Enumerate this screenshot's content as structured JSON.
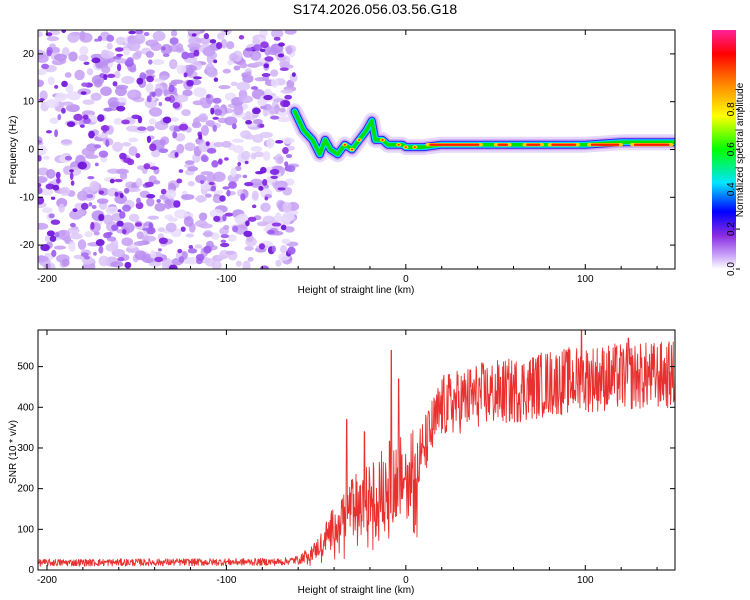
{
  "page": {
    "title": "S174.2026.056.03.56.G18"
  },
  "chart_data": [
    {
      "type": "heatmap",
      "name": "spectrogram",
      "xlabel": "Height of straight line (km)",
      "ylabel": "Frequency (Hz)",
      "xlim": [
        -205,
        150
      ],
      "ylim": [
        -25,
        25
      ],
      "xticks": [
        -200,
        -100,
        0,
        100
      ],
      "yticks": [
        -20,
        -10,
        0,
        10,
        20
      ],
      "noise_region_x": [
        -205,
        -62
      ],
      "ridge": {
        "description": "dominant frequency track",
        "x": [
          -62,
          -57,
          -52,
          -48,
          -45,
          -42,
          -38,
          -34,
          -30,
          -26,
          -22,
          -19,
          -17,
          -13,
          -10,
          -6,
          -2,
          0,
          5,
          10,
          20,
          40,
          60,
          80,
          100,
          120,
          150
        ],
        "freq": [
          8,
          4,
          2,
          -1,
          2,
          0,
          -1,
          1,
          0,
          2,
          4,
          6,
          2,
          2,
          1,
          1,
          1,
          0.5,
          0.5,
          0.5,
          1,
          1,
          1,
          1,
          1,
          1.5,
          1.5
        ]
      },
      "colorbar": {
        "label": "Normalized spectral amplitude",
        "range": [
          0,
          1
        ],
        "ticks": [
          "0.0",
          "0.2",
          "0.4",
          "0.6",
          "0.8"
        ]
      }
    },
    {
      "type": "line",
      "name": "snr",
      "xlabel": "Height of straight line (km)",
      "ylabel": "SNR (10 * v/v)",
      "xlim": [
        -205,
        150
      ],
      "ylim": [
        0,
        590
      ],
      "xticks": [
        -200,
        -100,
        0,
        100
      ],
      "yticks": [
        0,
        100,
        200,
        300,
        400,
        500
      ],
      "color": "#e8302e",
      "trend": {
        "x": [
          -205,
          -70,
          -60,
          -50,
          -40,
          -30,
          -20,
          -10,
          0,
          10,
          20,
          40,
          60,
          80,
          100,
          120,
          150
        ],
        "y": [
          18,
          20,
          25,
          50,
          110,
          160,
          180,
          220,
          230,
          300,
          400,
          430,
          440,
          460,
          470,
          475,
          480
        ]
      },
      "spikes": [
        {
          "x": -33,
          "y": 370
        },
        {
          "x": -23,
          "y": 340
        },
        {
          "x": -8,
          "y": 540
        },
        {
          "x": -4,
          "y": 470
        },
        {
          "x": 98,
          "y": 590
        },
        {
          "x": 124,
          "y": 570
        }
      ]
    }
  ]
}
